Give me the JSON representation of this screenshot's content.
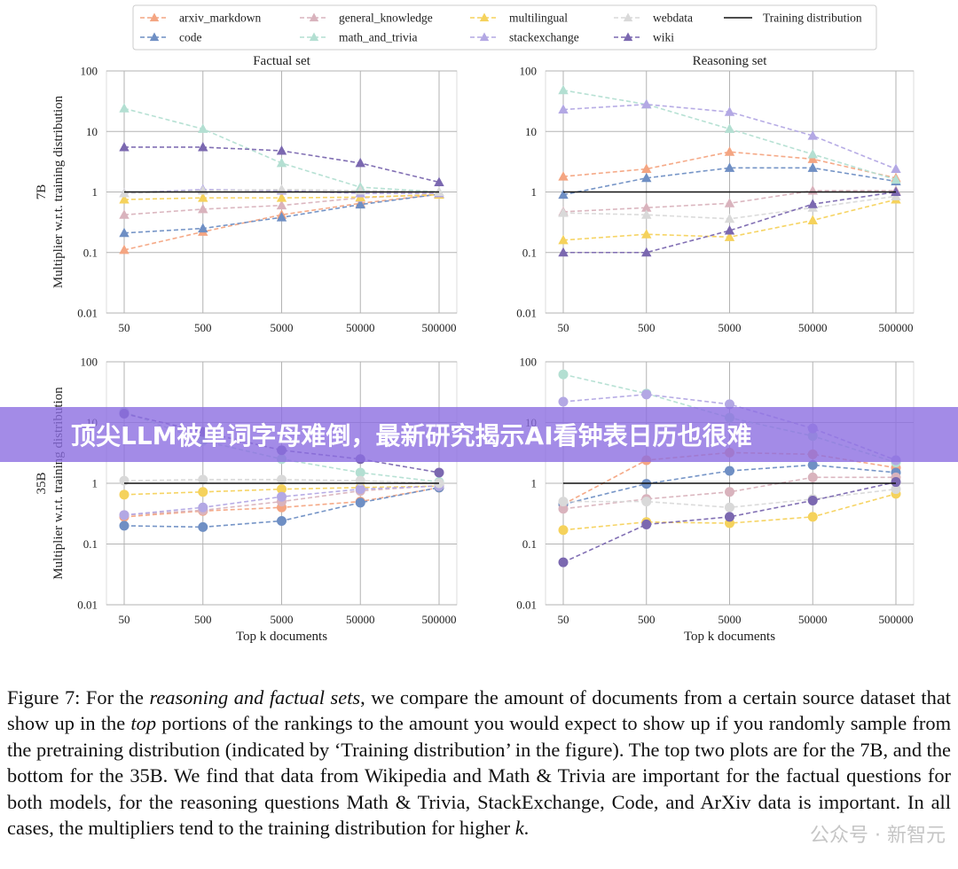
{
  "legend": {
    "items": [
      {
        "label": "arxiv_markdown",
        "color": "#f4a582",
        "marker": "triangle"
      },
      {
        "label": "code",
        "color": "#6f8fc4",
        "marker": "triangle"
      },
      {
        "label": "general_knowledge",
        "color": "#d9b3bd",
        "marker": "triangle"
      },
      {
        "label": "math_and_trivia",
        "color": "#b3dfd2",
        "marker": "triangle"
      },
      {
        "label": "multilingual",
        "color": "#f5d25c",
        "marker": "triangle"
      },
      {
        "label": "stackexchange",
        "color": "#b3a8e4",
        "marker": "triangle"
      },
      {
        "label": "webdata",
        "color": "#d9d9d9",
        "marker": "triangle"
      },
      {
        "label": "wiki",
        "color": "#7b68b0",
        "marker": "triangle"
      },
      {
        "label": "Training distribution",
        "color": "#111111",
        "marker": "line"
      }
    ]
  },
  "chart_data": [
    {
      "type": "line",
      "id": "factual-7b",
      "title": "Factual set",
      "ylabel": "Multiplier w.r.t. training distribution",
      "row_label": "7B",
      "xlabel": "",
      "x": [
        "50",
        "500",
        "5000",
        "50000",
        "500000"
      ],
      "yscale": "log",
      "ylim": [
        0.01,
        100
      ],
      "yticks": [
        "0.01",
        "0.1",
        "1",
        "10",
        "100"
      ],
      "marker": "triangle",
      "baseline": 1,
      "series": [
        {
          "name": "arxiv_markdown",
          "color": "#f4a582",
          "values": [
            0.11,
            0.22,
            0.42,
            0.65,
            0.92
          ]
        },
        {
          "name": "code",
          "color": "#6f8fc4",
          "values": [
            0.21,
            0.25,
            0.38,
            0.62,
            0.92
          ]
        },
        {
          "name": "general_knowledge",
          "color": "#d9b3bd",
          "values": [
            0.42,
            0.52,
            0.6,
            0.8,
            0.92
          ]
        },
        {
          "name": "math_and_trivia",
          "color": "#b3dfd2",
          "values": [
            24,
            11,
            3,
            1.2,
            1.0
          ]
        },
        {
          "name": "multilingual",
          "color": "#f5d25c",
          "values": [
            0.75,
            0.8,
            0.8,
            0.82,
            0.9
          ]
        },
        {
          "name": "stackexchange",
          "color": "#b3a8e4",
          "values": [
            0.95,
            1.1,
            1.05,
            0.95,
            0.95
          ]
        },
        {
          "name": "webdata",
          "color": "#d9d9d9",
          "values": [
            0.95,
            1.05,
            1.1,
            1.05,
            1.0
          ]
        },
        {
          "name": "wiki",
          "color": "#7b68b0",
          "values": [
            5.5,
            5.5,
            4.8,
            3.0,
            1.45
          ]
        }
      ]
    },
    {
      "type": "line",
      "id": "reasoning-7b",
      "title": "Reasoning set",
      "ylabel": "",
      "xlabel": "",
      "x": [
        "50",
        "500",
        "5000",
        "50000",
        "500000"
      ],
      "yscale": "log",
      "ylim": [
        0.01,
        100
      ],
      "yticks": [
        "0.01",
        "0.1",
        "1",
        "10",
        "100"
      ],
      "marker": "triangle",
      "baseline": 1,
      "series": [
        {
          "name": "arxiv_markdown",
          "color": "#f4a582",
          "values": [
            1.8,
            2.4,
            4.6,
            3.5,
            1.7
          ]
        },
        {
          "name": "code",
          "color": "#6f8fc4",
          "values": [
            0.9,
            1.7,
            2.5,
            2.5,
            1.5
          ]
        },
        {
          "name": "general_knowledge",
          "color": "#d9b3bd",
          "values": [
            0.47,
            0.55,
            0.65,
            1.05,
            1.05
          ]
        },
        {
          "name": "math_and_trivia",
          "color": "#b3dfd2",
          "values": [
            48,
            28,
            11,
            4.2,
            1.6
          ]
        },
        {
          "name": "multilingual",
          "color": "#f5d25c",
          "values": [
            0.16,
            0.2,
            0.18,
            0.34,
            0.75
          ]
        },
        {
          "name": "stackexchange",
          "color": "#b3a8e4",
          "values": [
            23,
            28,
            21,
            8.5,
            2.4
          ]
        },
        {
          "name": "webdata",
          "color": "#d9d9d9",
          "values": [
            0.45,
            0.42,
            0.36,
            0.55,
            0.85
          ]
        },
        {
          "name": "wiki",
          "color": "#7b68b0",
          "values": [
            0.1,
            0.1,
            0.23,
            0.63,
            1.0
          ]
        }
      ]
    },
    {
      "type": "line",
      "id": "factual-35b",
      "title": "",
      "ylabel": "Multiplier w.r.t. training distribution",
      "row_label": "35B",
      "xlabel": "Top k documents",
      "x": [
        "50",
        "500",
        "5000",
        "50000",
        "500000"
      ],
      "yscale": "log",
      "ylim": [
        0.01,
        100
      ],
      "yticks": [
        "0.01",
        "0.1",
        "1",
        "10",
        "100"
      ],
      "marker": "circle",
      "baseline": 1,
      "series": [
        {
          "name": "arxiv_markdown",
          "color": "#f4a582",
          "values": [
            0.28,
            0.35,
            0.4,
            0.5,
            0.85
          ]
        },
        {
          "name": "code",
          "color": "#6f8fc4",
          "values": [
            0.2,
            0.19,
            0.24,
            0.48,
            0.85
          ]
        },
        {
          "name": "general_knowledge",
          "color": "#d9b3bd",
          "values": [
            0.3,
            0.36,
            0.5,
            0.75,
            0.92
          ]
        },
        {
          "name": "math_and_trivia",
          "color": "#b3dfd2",
          "values": [
            15,
            5,
            2.5,
            1.5,
            1.05
          ]
        },
        {
          "name": "multilingual",
          "color": "#f5d25c",
          "values": [
            0.65,
            0.72,
            0.8,
            0.85,
            0.9
          ]
        },
        {
          "name": "stackexchange",
          "color": "#b3a8e4",
          "values": [
            0.3,
            0.4,
            0.6,
            0.8,
            0.9
          ]
        },
        {
          "name": "webdata",
          "color": "#d9d9d9",
          "values": [
            1.1,
            1.15,
            1.15,
            1.1,
            1.0
          ]
        },
        {
          "name": "wiki",
          "color": "#7b68b0",
          "values": [
            14,
            7,
            3.5,
            2.5,
            1.5
          ]
        }
      ]
    },
    {
      "type": "line",
      "id": "reasoning-35b",
      "title": "",
      "ylabel": "",
      "xlabel": "Top k documents",
      "x": [
        "50",
        "500",
        "5000",
        "50000",
        "500000"
      ],
      "yscale": "log",
      "ylim": [
        0.01,
        100
      ],
      "yticks": [
        "0.01",
        "0.1",
        "1",
        "10",
        "100"
      ],
      "marker": "circle",
      "baseline": 1,
      "series": [
        {
          "name": "arxiv_markdown",
          "color": "#f4a582",
          "values": [
            0.45,
            2.4,
            3.2,
            3.0,
            1.8
          ]
        },
        {
          "name": "code",
          "color": "#6f8fc4",
          "values": [
            0.45,
            0.98,
            1.6,
            2.0,
            1.5
          ]
        },
        {
          "name": "general_knowledge",
          "color": "#d9b3bd",
          "values": [
            0.38,
            0.55,
            0.72,
            1.25,
            1.25
          ]
        },
        {
          "name": "math_and_trivia",
          "color": "#b3dfd2",
          "values": [
            62,
            30,
            12,
            6,
            2.2
          ]
        },
        {
          "name": "multilingual",
          "color": "#f5d25c",
          "values": [
            0.17,
            0.23,
            0.22,
            0.28,
            0.67
          ]
        },
        {
          "name": "stackexchange",
          "color": "#b3a8e4",
          "values": [
            22,
            29,
            20,
            8,
            2.4
          ]
        },
        {
          "name": "webdata",
          "color": "#d9d9d9",
          "values": [
            0.5,
            0.5,
            0.4,
            0.55,
            0.8
          ]
        },
        {
          "name": "wiki",
          "color": "#7b68b0",
          "values": [
            0.05,
            0.21,
            0.28,
            0.52,
            1.05
          ]
        }
      ]
    }
  ],
  "banner": "顶尖LLM被单词字母难倒，最新研究揭示AI看钟表日历也很难",
  "caption": {
    "p1": "Figure 7: For the ",
    "p2": "reasoning and factual sets",
    "p3": ", we compare the amount of documents from a certain source dataset that show up in the ",
    "p4": "top",
    "p5": " portions of the rankings to the amount you would expect to show up if you randomly sample from the pretraining distribution (indicated by ‘Training distribution’ in the figure). The top two plots are for the 7B, and the bottom for the 35B. We find that data from Wikipedia and Math & Trivia are important for the factual questions for both models, for the reasoning questions Math & Trivia, StackExchange, Code, and ArXiv data is important. In all cases, the multipliers tend to the training distribution for higher ",
    "p6": "k",
    "p7": "."
  },
  "watermark": "公众号 · 新智元"
}
